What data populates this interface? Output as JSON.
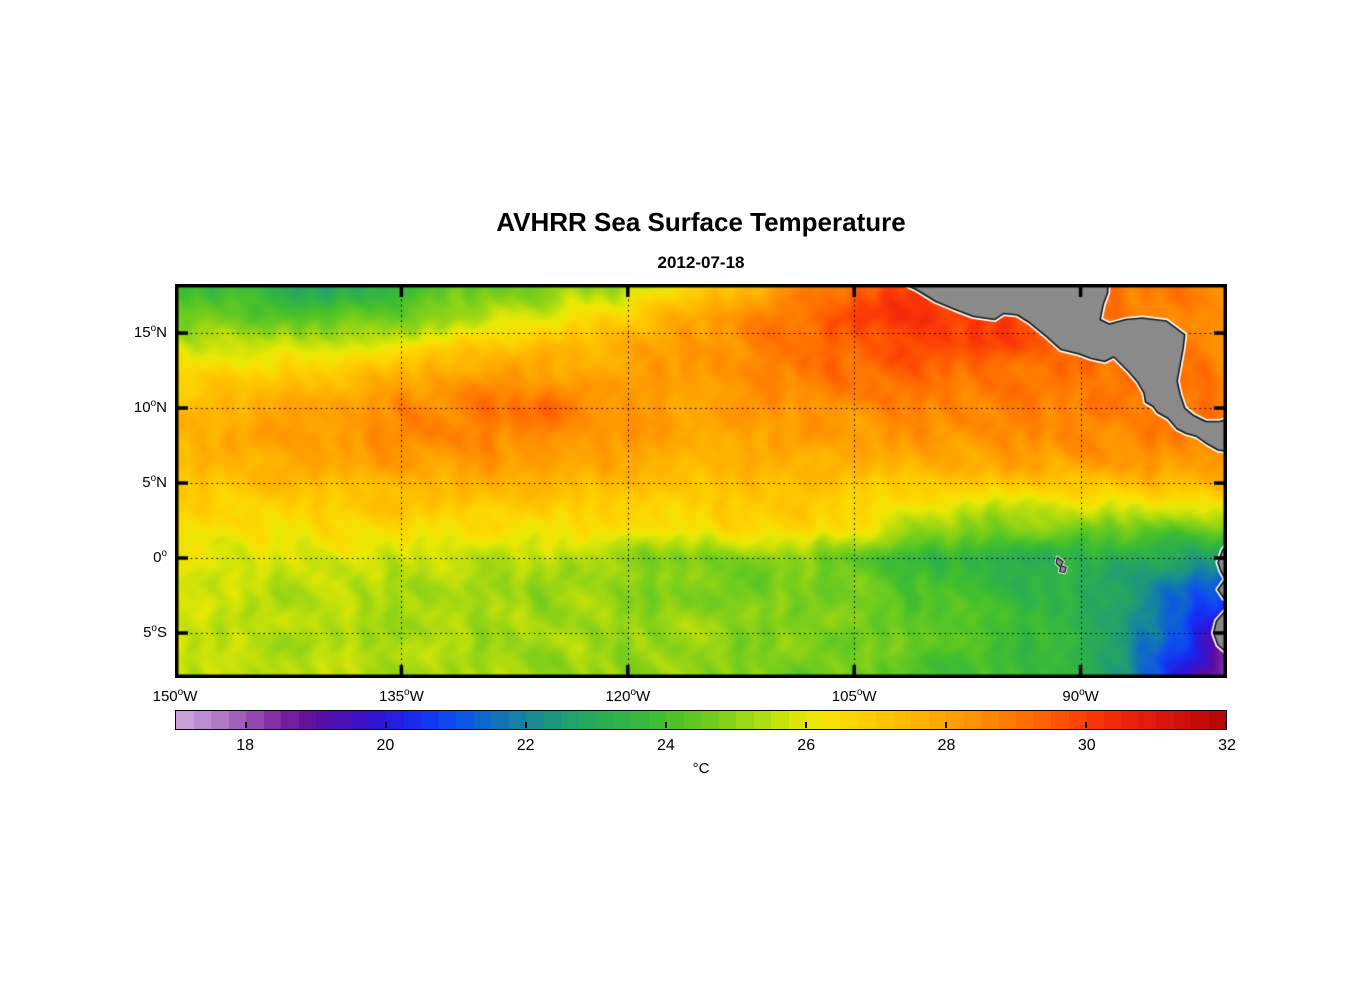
{
  "figure": {
    "background": "#ffffff"
  },
  "chart_data": {
    "type": "heatmap",
    "title": "AVHRR Sea Surface Temperature",
    "subtitle": "2012-07-18",
    "units": "°C",
    "deg_symbol": "o",
    "lon_range": [
      -150,
      -80.3
    ],
    "lat_range": [
      -8.0,
      18.27
    ],
    "x_ticks": [
      {
        "num": "150",
        "dir": "W",
        "lon": -150
      },
      {
        "num": "135",
        "dir": "W",
        "lon": -135
      },
      {
        "num": "120",
        "dir": "W",
        "lon": -120
      },
      {
        "num": "105",
        "dir": "W",
        "lon": -105
      },
      {
        "num": "90",
        "dir": "W",
        "lon": -90
      }
    ],
    "y_ticks": [
      {
        "num": "15",
        "dir": "N",
        "lat": 15
      },
      {
        "num": "10",
        "dir": "N",
        "lat": 10
      },
      {
        "num": "5",
        "dir": "N",
        "lat": 5
      },
      {
        "num": "0",
        "dir": "",
        "lat": 0
      },
      {
        "num": "5",
        "dir": "S",
        "lat": -5
      }
    ],
    "grid_lons": [
      -135,
      -120,
      -105,
      -90
    ],
    "grid_lats": [
      15,
      10,
      5,
      0,
      -5
    ],
    "grid": {
      "lons": [
        -150,
        -145,
        -140,
        -135,
        -130,
        -125,
        -120,
        -115,
        -110,
        -105,
        -100,
        -95,
        -90,
        -85,
        -80
      ],
      "lats": [
        18,
        16,
        14,
        12,
        10,
        8,
        6,
        4,
        2,
        0,
        -2,
        -4,
        -6,
        -8
      ],
      "sst_c": [
        [
          23.8,
          23.6,
          22.9,
          23.6,
          24.6,
          24.8,
          25.4,
          26.8,
          28.2,
          29.4,
          30.0,
          30.1,
          29.2,
          28.8,
          28.6
        ],
        [
          24.8,
          24.4,
          24.2,
          24.6,
          25.3,
          26.1,
          27.0,
          28.0,
          29.0,
          29.8,
          30.3,
          30.0,
          29.0,
          28.7,
          28.5
        ],
        [
          25.9,
          25.7,
          25.9,
          26.4,
          26.9,
          27.4,
          27.9,
          28.2,
          28.9,
          29.4,
          29.7,
          29.6,
          29.4,
          28.8,
          28.6
        ],
        [
          26.7,
          26.9,
          27.2,
          27.7,
          28.2,
          28.1,
          27.9,
          28.2,
          28.7,
          29.1,
          29.2,
          28.9,
          29.1,
          29.2,
          29.0
        ],
        [
          27.4,
          27.7,
          28.1,
          28.5,
          28.9,
          29.2,
          28.3,
          28.0,
          28.2,
          28.5,
          28.7,
          28.7,
          28.9,
          28.9,
          28.8
        ],
        [
          27.7,
          27.9,
          28.2,
          28.5,
          28.7,
          28.4,
          28.1,
          27.8,
          27.9,
          28.1,
          28.3,
          28.4,
          28.5,
          28.8,
          28.7
        ],
        [
          27.4,
          27.5,
          27.7,
          27.9,
          28.1,
          27.9,
          27.7,
          27.5,
          27.4,
          27.5,
          27.7,
          27.8,
          27.9,
          28.1,
          28.0
        ],
        [
          26.9,
          26.9,
          27.1,
          27.2,
          27.3,
          27.1,
          26.9,
          26.9,
          27.1,
          26.8,
          26.3,
          26.0,
          26.3,
          26.6,
          26.8
        ],
        [
          26.4,
          26.3,
          26.4,
          26.5,
          26.5,
          26.3,
          26.3,
          26.5,
          26.8,
          26.3,
          25.2,
          24.8,
          24.6,
          24.5,
          24.8
        ],
        [
          26.0,
          25.9,
          25.8,
          25.7,
          25.6,
          25.4,
          25.1,
          24.6,
          24.9,
          24.4,
          23.4,
          23.2,
          23.1,
          23.0,
          22.2
        ],
        [
          25.8,
          25.6,
          25.4,
          25.3,
          25.2,
          25.1,
          24.9,
          24.7,
          24.8,
          24.6,
          24.1,
          23.6,
          23.1,
          22.0,
          21.0
        ],
        [
          25.7,
          25.6,
          25.4,
          25.3,
          25.3,
          25.2,
          25.2,
          25.0,
          25.0,
          24.7,
          24.3,
          24.0,
          23.3,
          21.8,
          19.5
        ],
        [
          25.6,
          25.5,
          25.4,
          25.3,
          25.2,
          25.2,
          25.1,
          25.0,
          24.9,
          24.6,
          24.3,
          23.9,
          23.4,
          21.5,
          18.6
        ],
        [
          25.6,
          25.5,
          25.4,
          25.3,
          25.2,
          25.1,
          25.0,
          24.9,
          24.8,
          24.5,
          24.2,
          23.9,
          23.4,
          21.0,
          17.8
        ]
      ]
    },
    "colorbar": {
      "min": 17,
      "max": 32,
      "block_step": 0.25,
      "ticks": [
        18,
        20,
        22,
        24,
        26,
        28,
        30,
        32
      ]
    },
    "colormap": [
      [
        17.0,
        "#d0a9de"
      ],
      [
        17.5,
        "#b683cb"
      ],
      [
        18.0,
        "#9a55b5"
      ],
      [
        18.5,
        "#7b21a0"
      ],
      [
        19.0,
        "#5c0d9e"
      ],
      [
        19.5,
        "#4312c0"
      ],
      [
        20.0,
        "#2a18dd"
      ],
      [
        20.5,
        "#1430f2"
      ],
      [
        21.0,
        "#0d50f0"
      ],
      [
        21.5,
        "#0f6ec0"
      ],
      [
        22.0,
        "#16869c"
      ],
      [
        22.5,
        "#1f9d74"
      ],
      [
        23.0,
        "#28ab57"
      ],
      [
        23.5,
        "#33b542"
      ],
      [
        24.0,
        "#44c02c"
      ],
      [
        24.5,
        "#67ca20"
      ],
      [
        25.0,
        "#8fd316"
      ],
      [
        25.5,
        "#bcdf0c"
      ],
      [
        26.0,
        "#e8e804"
      ],
      [
        26.5,
        "#fbdb02"
      ],
      [
        27.0,
        "#ffc900"
      ],
      [
        27.5,
        "#ffb600"
      ],
      [
        28.0,
        "#ffa300"
      ],
      [
        28.5,
        "#ff8d00"
      ],
      [
        29.0,
        "#ff7400"
      ],
      [
        29.5,
        "#ff5a00"
      ],
      [
        30.0,
        "#fb3a06"
      ],
      [
        30.5,
        "#ee250b"
      ],
      [
        31.0,
        "#dd170d"
      ],
      [
        31.5,
        "#c90c0a"
      ],
      [
        32.0,
        "#b10707"
      ]
    ],
    "land": {
      "fill": "#8a8a8a",
      "outline": "#141414",
      "fringe": "#ffffff",
      "polygons": {
        "central_america": [
          [
            -101.8,
            18.6
          ],
          [
            -101.8,
            18.3
          ],
          [
            -100.9,
            17.9
          ],
          [
            -99.6,
            17.1
          ],
          [
            -98.4,
            16.6
          ],
          [
            -97.1,
            16.1
          ],
          [
            -95.7,
            15.9
          ],
          [
            -95.1,
            16.3
          ],
          [
            -94.2,
            16.2
          ],
          [
            -93.4,
            15.7
          ],
          [
            -92.3,
            14.8
          ],
          [
            -91.3,
            13.9
          ],
          [
            -90.1,
            13.6
          ],
          [
            -89.3,
            13.3
          ],
          [
            -88.4,
            13.1
          ],
          [
            -87.8,
            13.4
          ],
          [
            -87.3,
            12.9
          ],
          [
            -86.8,
            12.4
          ],
          [
            -86.2,
            11.7
          ],
          [
            -85.8,
            11.0
          ],
          [
            -85.7,
            10.4
          ],
          [
            -85.2,
            10.1
          ],
          [
            -84.9,
            9.7
          ],
          [
            -84.2,
            9.3
          ],
          [
            -83.6,
            8.6
          ],
          [
            -83.0,
            8.3
          ],
          [
            -82.3,
            8.1
          ],
          [
            -81.6,
            7.6
          ],
          [
            -80.9,
            7.2
          ],
          [
            -80.3,
            7.1
          ],
          [
            -79.9,
            7.5
          ],
          [
            -79.3,
            7.2
          ],
          [
            -78.5,
            7.5
          ],
          [
            -78.0,
            8.0
          ],
          [
            -78.0,
            9.2
          ],
          [
            -79.5,
            9.5
          ],
          [
            -80.8,
            9.1
          ],
          [
            -81.7,
            9.1
          ],
          [
            -82.5,
            9.5
          ],
          [
            -83.1,
            10.0
          ],
          [
            -83.4,
            10.9
          ],
          [
            -83.6,
            11.8
          ],
          [
            -83.4,
            12.9
          ],
          [
            -83.2,
            14.0
          ],
          [
            -83.1,
            14.9
          ],
          [
            -84.3,
            15.8
          ],
          [
            -85.9,
            16.0
          ],
          [
            -87.0,
            15.9
          ],
          [
            -88.1,
            15.6
          ],
          [
            -88.7,
            15.9
          ],
          [
            -88.5,
            16.9
          ],
          [
            -88.2,
            17.7
          ],
          [
            -88.2,
            18.6
          ]
        ],
        "south_america": [
          [
            -80.0,
            1.3
          ],
          [
            -80.3,
            0.9
          ],
          [
            -80.6,
            0.5
          ],
          [
            -80.9,
            -0.3
          ],
          [
            -80.7,
            -0.9
          ],
          [
            -80.4,
            -1.4
          ],
          [
            -80.9,
            -2.1
          ],
          [
            -80.5,
            -2.7
          ],
          [
            -80.0,
            -2.9
          ],
          [
            -80.3,
            -3.4
          ],
          [
            -81.0,
            -4.2
          ],
          [
            -81.2,
            -5.0
          ],
          [
            -80.9,
            -5.8
          ],
          [
            -80.1,
            -6.5
          ],
          [
            -79.6,
            -7.2
          ],
          [
            -79.2,
            -8.0
          ],
          [
            -79.0,
            -8.6
          ],
          [
            -77.0,
            -8.6
          ],
          [
            -77.0,
            1.6
          ],
          [
            -79.0,
            1.8
          ]
        ],
        "galapagos": [
          [
            -91.55,
            0.05
          ],
          [
            -91.15,
            -0.25
          ],
          [
            -91.3,
            -0.5
          ],
          [
            -90.95,
            -0.62
          ],
          [
            -91.05,
            -0.98
          ],
          [
            -91.4,
            -0.9
          ],
          [
            -91.32,
            -0.62
          ],
          [
            -91.62,
            -0.35
          ]
        ]
      }
    }
  }
}
